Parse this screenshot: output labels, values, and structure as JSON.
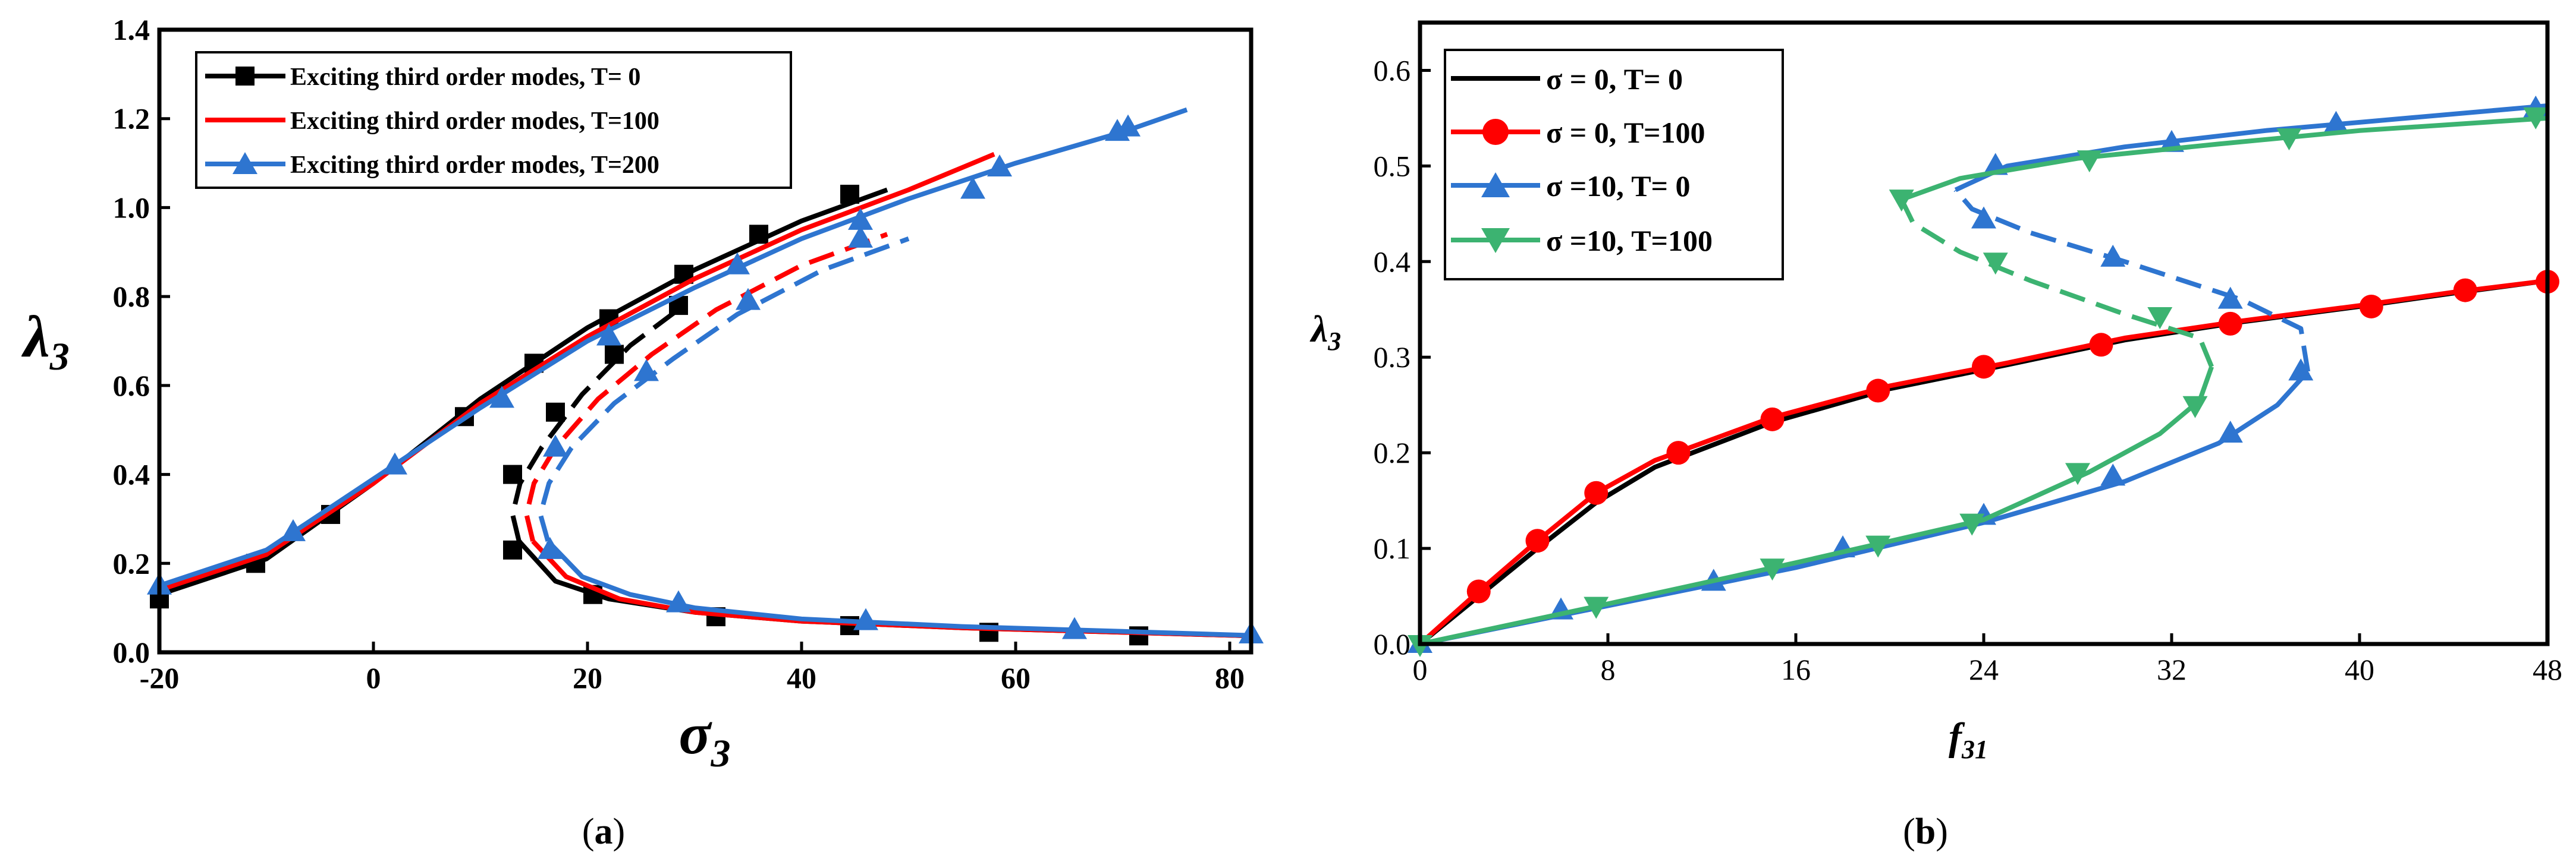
{
  "chart_data": [
    {
      "type": "line",
      "panel": "(a)",
      "xlabel": "σ3",
      "ylabel": "λ3",
      "xlim": [
        -20,
        82
      ],
      "ylim": [
        0,
        1.4
      ],
      "xticks": [
        -20,
        0,
        20,
        40,
        60,
        80
      ],
      "yticks": [
        0.0,
        0.2,
        0.4,
        0.6,
        0.8,
        1.0,
        1.2,
        1.4
      ],
      "xtick_labels": [
        "-20",
        "0",
        "20",
        "40",
        "60",
        "80"
      ],
      "ytick_labels": [
        "0.0",
        "0.2",
        "0.4",
        "0.6",
        "0.8",
        "1.0",
        "1.2",
        "1.4"
      ],
      "legend_position": "top-left",
      "series": [
        {
          "name": "Exciting third order modes,  T= 0",
          "color": "#000000",
          "marker": "square",
          "upper": [
            [
              -20,
              0.13
            ],
            [
              -10,
              0.21
            ],
            [
              0,
              0.38
            ],
            [
              10,
              0.57
            ],
            [
              20,
              0.73
            ],
            [
              30,
              0.86
            ],
            [
              40,
              0.97
            ],
            [
              48,
              1.04
            ]
          ],
          "unstable": [
            [
              13.6,
              0.25
            ],
            [
              13,
              0.31
            ],
            [
              13.7,
              0.38
            ],
            [
              15.7,
              0.46
            ],
            [
              19.5,
              0.58
            ],
            [
              24,
              0.69
            ],
            [
              29,
              0.78
            ]
          ],
          "lower": [
            [
              13.6,
              0.25
            ],
            [
              17,
              0.16
            ],
            [
              22,
              0.12
            ],
            [
              30,
              0.09
            ],
            [
              40,
              0.07
            ],
            [
              55,
              0.055
            ],
            [
              70,
              0.045
            ],
            [
              82,
              0.037
            ]
          ],
          "markers": [
            [
              -20,
              0.12
            ],
            [
              -11,
              0.2
            ],
            [
              -4,
              0.31
            ],
            [
              8.5,
              0.53
            ],
            [
              15,
              0.65
            ],
            [
              22,
              0.75
            ],
            [
              29,
              0.85
            ],
            [
              36,
              0.94
            ],
            [
              44.5,
              1.03
            ],
            [
              13,
              0.4
            ],
            [
              17,
              0.54
            ],
            [
              22.5,
              0.67
            ],
            [
              28.5,
              0.78
            ],
            [
              13,
              0.23
            ],
            [
              20.5,
              0.13
            ],
            [
              32,
              0.08
            ],
            [
              44.5,
              0.06
            ],
            [
              57.5,
              0.045
            ],
            [
              71.5,
              0.037
            ]
          ]
        },
        {
          "name": "Exciting third order modes,  T=100",
          "color": "#ff0000",
          "marker": "none",
          "upper": [
            [
              -20,
              0.14
            ],
            [
              -10,
              0.22
            ],
            [
              0,
              0.38
            ],
            [
              10,
              0.56
            ],
            [
              20,
              0.71
            ],
            [
              30,
              0.84
            ],
            [
              40,
              0.95
            ],
            [
              50,
              1.04
            ],
            [
              58,
              1.12
            ]
          ],
          "unstable": [
            [
              14.9,
              0.25
            ],
            [
              14.3,
              0.31
            ],
            [
              15,
              0.38
            ],
            [
              17,
              0.46
            ],
            [
              21,
              0.57
            ],
            [
              26,
              0.67
            ],
            [
              32,
              0.77
            ],
            [
              40,
              0.87
            ],
            [
              48,
              0.94
            ]
          ],
          "lower": [
            [
              14.9,
              0.25
            ],
            [
              18,
              0.17
            ],
            [
              23,
              0.12
            ],
            [
              30,
              0.09
            ],
            [
              40,
              0.07
            ],
            [
              55,
              0.055
            ],
            [
              70,
              0.045
            ],
            [
              82,
              0.037
            ]
          ],
          "markers": []
        },
        {
          "name": "Exciting third order modes,  T=200",
          "color": "#2e75d0",
          "marker": "triangle",
          "upper": [
            [
              -20,
              0.15
            ],
            [
              -10,
              0.23
            ],
            [
              0,
              0.39
            ],
            [
              10,
              0.55
            ],
            [
              20,
              0.7
            ],
            [
              30,
              0.82
            ],
            [
              40,
              0.93
            ],
            [
              50,
              1.02
            ],
            [
              60,
              1.1
            ],
            [
              70,
              1.17
            ],
            [
              76,
              1.22
            ]
          ],
          "unstable": [
            [
              16.3,
              0.25
            ],
            [
              15.6,
              0.31
            ],
            [
              16.4,
              0.38
            ],
            [
              18.5,
              0.46
            ],
            [
              22.5,
              0.56
            ],
            [
              28,
              0.66
            ],
            [
              34,
              0.76
            ],
            [
              42,
              0.86
            ],
            [
              50,
              0.93
            ]
          ],
          "lower": [
            [
              16.3,
              0.25
            ],
            [
              19.5,
              0.17
            ],
            [
              24,
              0.13
            ],
            [
              30,
              0.1
            ],
            [
              40,
              0.075
            ],
            [
              55,
              0.058
            ],
            [
              70,
              0.047
            ],
            [
              82,
              0.038
            ]
          ],
          "markers": [
            [
              -20,
              0.15
            ],
            [
              -7.5,
              0.27
            ],
            [
              2,
              0.42
            ],
            [
              12,
              0.57
            ],
            [
              22,
              0.71
            ],
            [
              34,
              0.87
            ],
            [
              45.5,
              0.97
            ],
            [
              58.5,
              1.09
            ],
            [
              70.5,
              1.18
            ],
            [
              17,
              0.46
            ],
            [
              25.5,
              0.63
            ],
            [
              35,
              0.79
            ],
            [
              45.5,
              0.93
            ],
            [
              56,
              1.04
            ],
            [
              69.5,
              1.17
            ],
            [
              16.5,
              0.23
            ],
            [
              28.5,
              0.11
            ],
            [
              46,
              0.07
            ],
            [
              65.5,
              0.05
            ],
            [
              82,
              0.04
            ]
          ]
        }
      ]
    },
    {
      "type": "line",
      "panel": "(b)",
      "xlabel": "f31",
      "ylabel": "λ3",
      "xlim": [
        0,
        48
      ],
      "ylim": [
        0,
        0.65
      ],
      "xticks": [
        0,
        8,
        16,
        24,
        32,
        40,
        48
      ],
      "yticks": [
        0.0,
        0.1,
        0.2,
        0.3,
        0.4,
        0.5,
        0.6
      ],
      "xtick_labels": [
        "0",
        "8",
        "16",
        "24",
        "32",
        "40",
        "48"
      ],
      "ytick_labels": [
        "0.0",
        "0.1",
        "0.2",
        "0.3",
        "0.4",
        "0.5",
        "0.6"
      ],
      "legend_position": "top-left",
      "series": [
        {
          "name": "σ = 0,  T=  0",
          "color": "#000000",
          "marker": "none",
          "stable_lower": [
            [
              0,
              0
            ],
            [
              2.5,
              0.05
            ],
            [
              5,
              0.1
            ],
            [
              7.5,
              0.148
            ],
            [
              10,
              0.185
            ],
            [
              15,
              0.232
            ],
            [
              20,
              0.267
            ],
            [
              25,
              0.292
            ],
            [
              30,
              0.318
            ],
            [
              35,
              0.337
            ],
            [
              40,
              0.353
            ],
            [
              44,
              0.367
            ],
            [
              48,
              0.38
            ]
          ],
          "unstable": [],
          "stable_upper": [],
          "markers": []
        },
        {
          "name": "σ = 0,  T=100",
          "color": "#ff0000",
          "marker": "circle",
          "stable_lower": [
            [
              0,
              0
            ],
            [
              2.5,
              0.055
            ],
            [
              5,
              0.108
            ],
            [
              7.5,
              0.158
            ],
            [
              10,
              0.192
            ],
            [
              15,
              0.237
            ],
            [
              20,
              0.27
            ],
            [
              25,
              0.294
            ],
            [
              30,
              0.32
            ],
            [
              35,
              0.338
            ],
            [
              40,
              0.354
            ],
            [
              44,
              0.368
            ],
            [
              48,
              0.38
            ]
          ],
          "unstable": [],
          "stable_upper": [],
          "markers": [
            [
              2.5,
              0.055
            ],
            [
              5,
              0.108
            ],
            [
              7.5,
              0.158
            ],
            [
              11,
              0.2
            ],
            [
              15,
              0.235
            ],
            [
              19.5,
              0.265
            ],
            [
              24,
              0.29
            ],
            [
              29,
              0.313
            ],
            [
              34.5,
              0.335
            ],
            [
              40.5,
              0.353
            ],
            [
              44.5,
              0.37
            ],
            [
              48,
              0.379
            ]
          ]
        },
        {
          "name": "σ =10,  T=  0",
          "color": "#2e75d0",
          "marker": "triangle",
          "stable_lower": [
            [
              0,
              0
            ],
            [
              8,
              0.04
            ],
            [
              16,
              0.08
            ],
            [
              24,
              0.127
            ],
            [
              30,
              0.17
            ],
            [
              34,
              0.21
            ],
            [
              36.5,
              0.25
            ],
            [
              37.8,
              0.285
            ]
          ],
          "unstable": [
            [
              37.8,
              0.285
            ],
            [
              37.5,
              0.33
            ],
            [
              35,
              0.36
            ],
            [
              30,
              0.4
            ],
            [
              26,
              0.43
            ],
            [
              23.5,
              0.455
            ],
            [
              22.8,
              0.475
            ]
          ],
          "stable_upper": [
            [
              22.8,
              0.475
            ],
            [
              25,
              0.5
            ],
            [
              30,
              0.52
            ],
            [
              36,
              0.537
            ],
            [
              42,
              0.55
            ],
            [
              48,
              0.563
            ]
          ],
          "markers": [
            [
              6,
              0.035
            ],
            [
              12.5,
              0.065
            ],
            [
              18,
              0.1
            ],
            [
              24,
              0.134
            ],
            [
              29.5,
              0.175
            ],
            [
              34.5,
              0.22
            ],
            [
              37.5,
              0.285
            ],
            [
              34.5,
              0.36
            ],
            [
              29.5,
              0.404
            ],
            [
              24,
              0.444
            ],
            [
              24.5,
              0.5
            ],
            [
              32,
              0.524
            ],
            [
              39,
              0.544
            ],
            [
              47.5,
              0.56
            ]
          ]
        },
        {
          "name": "σ =10, T=100",
          "color": "#3cb371",
          "marker": "triangle-down",
          "stable_lower": [
            [
              0,
              0
            ],
            [
              8,
              0.042
            ],
            [
              16,
              0.085
            ],
            [
              24,
              0.13
            ],
            [
              28.5,
              0.18
            ],
            [
              31.5,
              0.22
            ],
            [
              33.2,
              0.255
            ],
            [
              33.7,
              0.29
            ]
          ],
          "unstable": [
            [
              33.7,
              0.29
            ],
            [
              33.2,
              0.32
            ],
            [
              30,
              0.345
            ],
            [
              26,
              0.38
            ],
            [
              23,
              0.41
            ],
            [
              21,
              0.44
            ],
            [
              20.5,
              0.465
            ]
          ],
          "stable_upper": [
            [
              20.5,
              0.465
            ],
            [
              23,
              0.487
            ],
            [
              28,
              0.508
            ],
            [
              34,
              0.523
            ],
            [
              40,
              0.537
            ],
            [
              48,
              0.55
            ]
          ],
          "markers": [
            [
              7.5,
              0.04
            ],
            [
              15,
              0.08
            ],
            [
              19.5,
              0.104
            ],
            [
              23.5,
              0.127
            ],
            [
              28,
              0.18
            ],
            [
              33,
              0.25
            ],
            [
              31.5,
              0.343
            ],
            [
              24.5,
              0.4
            ],
            [
              20.5,
              0.466
            ],
            [
              28.5,
              0.507
            ],
            [
              37,
              0.53
            ],
            [
              47.5,
              0.552
            ]
          ]
        }
      ]
    }
  ]
}
